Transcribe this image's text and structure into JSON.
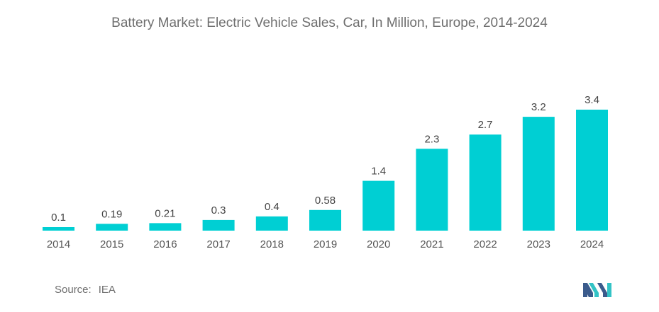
{
  "chart_data": {
    "type": "bar",
    "title": "Battery Market: Electric Vehicle Sales, Car, In Million, Europe, 2014-2024",
    "categories": [
      "2014",
      "2015",
      "2016",
      "2017",
      "2018",
      "2019",
      "2020",
      "2021",
      "2022",
      "2023",
      "2024"
    ],
    "values": [
      0.1,
      0.19,
      0.21,
      0.3,
      0.4,
      0.58,
      1.4,
      2.3,
      2.7,
      3.2,
      3.4
    ],
    "value_labels": [
      "0.1",
      "0.19",
      "0.21",
      "0.3",
      "0.4",
      "0.58",
      "1.4",
      "2.3",
      "2.7",
      "3.2",
      "3.4"
    ],
    "xlabel": "",
    "ylabel": "",
    "ylim": [
      0,
      3.4
    ],
    "grid": false,
    "legend": "none",
    "bar_color": "#00cfd3"
  },
  "source": {
    "label": "Source:",
    "value": "IEA"
  },
  "logo": {
    "icon": "mordor-logo-icon",
    "colors": [
      "#3b5b8c",
      "#33c3c6"
    ]
  }
}
